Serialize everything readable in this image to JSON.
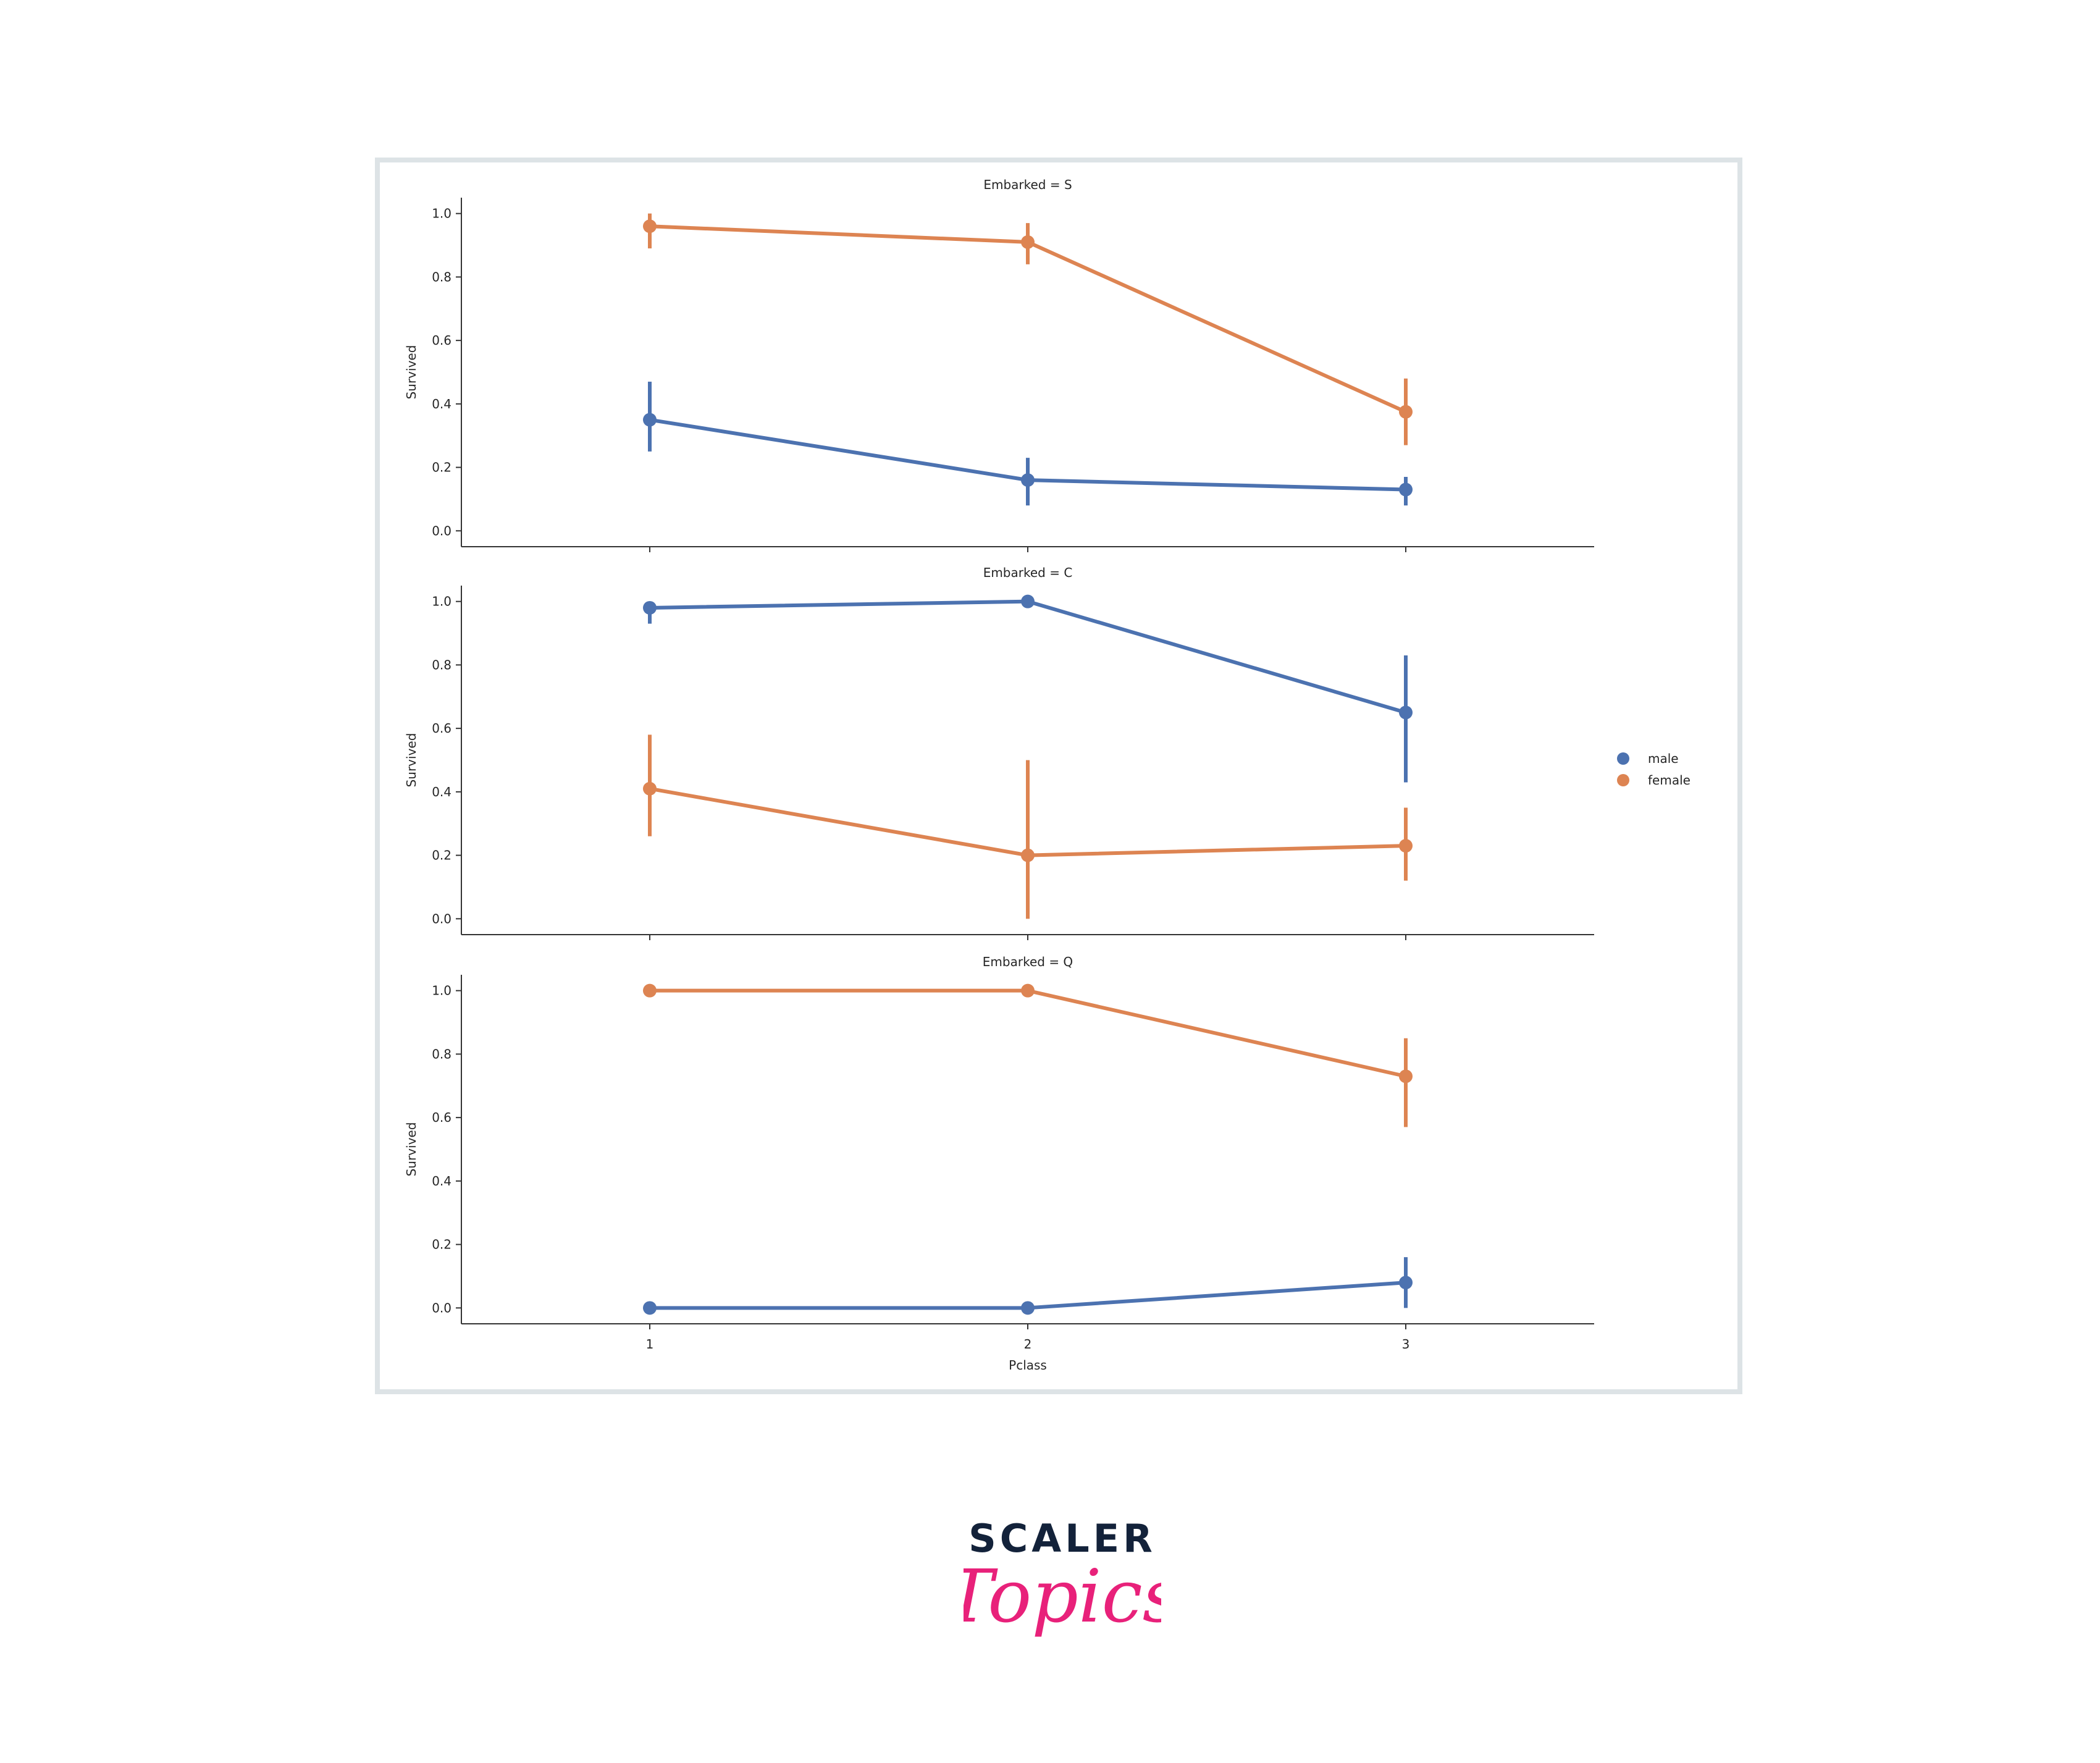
{
  "chart_data": {
    "type": "line",
    "categories": [
      "1",
      "2",
      "3"
    ],
    "xlabel": "Pclass",
    "ylabel": "Survived",
    "ylim": [
      -0.05,
      1.05
    ],
    "yticks": [
      "0.0",
      "0.2",
      "0.4",
      "0.6",
      "0.8",
      "1.0"
    ],
    "legend_position": "center-right",
    "grid": false,
    "legend": [
      {
        "name": "male",
        "color": "#4c72b0"
      },
      {
        "name": "female",
        "color": "#dd8452"
      }
    ],
    "panels": [
      {
        "title": "Embarked = S",
        "series": [
          {
            "name": "male",
            "values": [
              0.35,
              0.16,
              0.13
            ],
            "err_low": [
              0.25,
              0.08,
              0.08
            ],
            "err_high": [
              0.47,
              0.23,
              0.17
            ]
          },
          {
            "name": "female",
            "values": [
              0.96,
              0.91,
              0.375
            ],
            "err_low": [
              0.89,
              0.84,
              0.27
            ],
            "err_high": [
              1.0,
              0.97,
              0.48
            ]
          }
        ]
      },
      {
        "title": "Embarked = C",
        "series": [
          {
            "name": "male",
            "values": [
              0.98,
              1.0,
              0.65
            ],
            "err_low": [
              0.93,
              1.0,
              0.43
            ],
            "err_high": [
              1.0,
              1.0,
              0.83
            ]
          },
          {
            "name": "female",
            "values": [
              0.41,
              0.2,
              0.23
            ],
            "err_low": [
              0.26,
              0.0,
              0.12
            ],
            "err_high": [
              0.58,
              0.5,
              0.35
            ]
          }
        ]
      },
      {
        "title": "Embarked = Q",
        "series": [
          {
            "name": "male",
            "values": [
              0.0,
              0.0,
              0.08
            ],
            "err_low": [
              0.0,
              0.0,
              0.0
            ],
            "err_high": [
              0.0,
              0.0,
              0.16
            ]
          },
          {
            "name": "female",
            "values": [
              1.0,
              1.0,
              0.73
            ],
            "err_low": [
              1.0,
              1.0,
              0.57
            ],
            "err_high": [
              1.0,
              1.0,
              0.85
            ]
          }
        ]
      }
    ]
  },
  "brand": {
    "word_top": "SCALER",
    "word_bottom": "Topics",
    "color_top": "#13223a",
    "color_bottom": "#e8217a"
  }
}
